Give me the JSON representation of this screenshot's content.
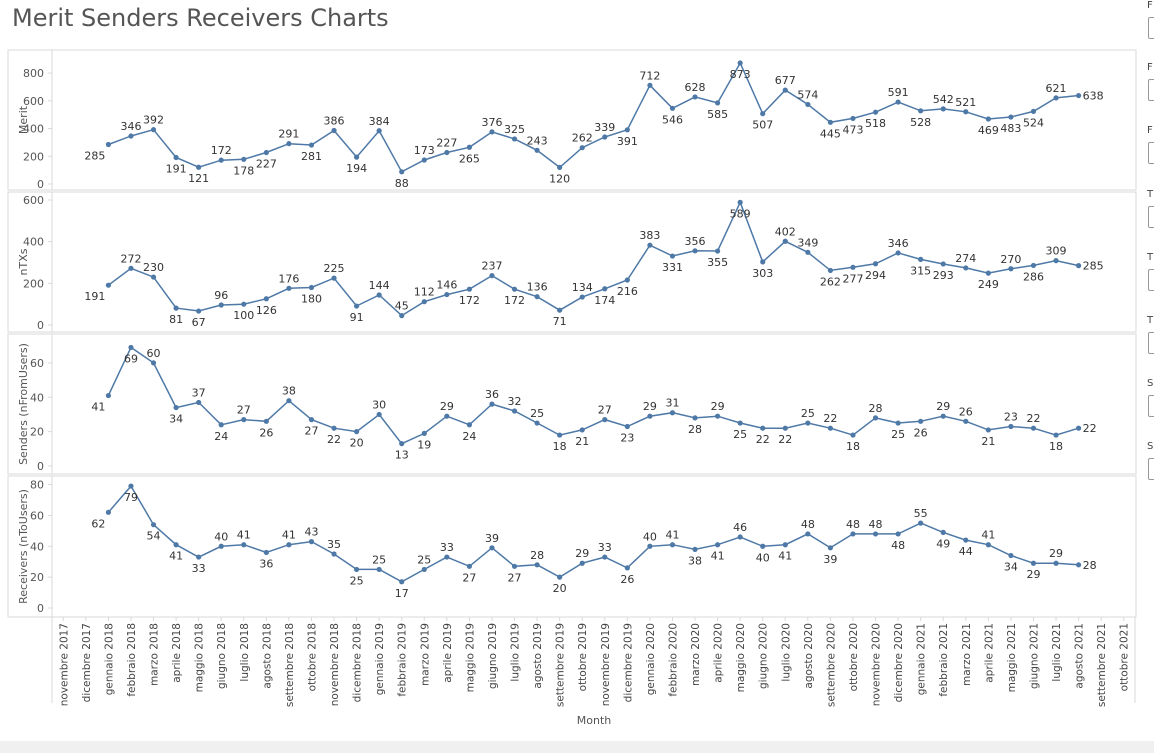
{
  "title": "Merit Senders Receivers Charts",
  "filter_labels": [
    "F",
    "F",
    "F",
    "T",
    "T",
    "T",
    "S",
    "S"
  ],
  "colors": {
    "line": "#4e79a7",
    "grid": "#d9d9d9",
    "text": "#555555"
  },
  "chart_data": {
    "type": "line",
    "title": "Merit Senders Receivers Charts",
    "xlabel": "Month",
    "categories": [
      "novembre 2017",
      "dicembre 2017",
      "gennaio 2018",
      "febbraio 2018",
      "marzo 2018",
      "aprile 2018",
      "maggio 2018",
      "giugno 2018",
      "luglio 2018",
      "agosto 2018",
      "settembre 2018",
      "ottobre 2018",
      "novembre 2018",
      "dicembre 2018",
      "gennaio 2019",
      "febbraio 2019",
      "marzo 2019",
      "aprile 2019",
      "maggio 2019",
      "giugno 2019",
      "luglio 2019",
      "agosto 2019",
      "settembre 2019",
      "ottobre 2019",
      "novembre 2019",
      "dicembre 2019",
      "gennaio 2020",
      "febbraio 2020",
      "marzo 2020",
      "aprile 2020",
      "maggio 2020",
      "giugno 2020",
      "luglio 2020",
      "agosto 2020",
      "settembre 2020",
      "ottobre 2020",
      "novembre 2020",
      "dicembre 2020",
      "gennaio 2021",
      "febbraio 2021",
      "marzo 2021",
      "aprile 2021",
      "maggio 2021",
      "giugno 2021",
      "luglio 2021",
      "agosto 2021",
      "settembre 2021",
      "ottobre 2021"
    ],
    "series": [
      {
        "name": "Merit",
        "ylabel": "Merit",
        "ylim": [
          0,
          880
        ],
        "ticks": [
          0,
          200,
          400,
          600,
          800
        ],
        "values": [
          null,
          null,
          285,
          346,
          392,
          191,
          121,
          172,
          178,
          227,
          291,
          281,
          386,
          194,
          384,
          88,
          173,
          227,
          265,
          376,
          325,
          243,
          120,
          262,
          339,
          391,
          712,
          546,
          628,
          585,
          873,
          507,
          677,
          574,
          445,
          473,
          518,
          591,
          528,
          542,
          521,
          469,
          483,
          524,
          621,
          638,
          null,
          null
        ]
      },
      {
        "name": "nTXs",
        "ylabel": "nTXs",
        "ylim": [
          0,
          600
        ],
        "ticks": [
          0,
          200,
          400,
          600
        ],
        "values": [
          null,
          null,
          191,
          272,
          230,
          81,
          67,
          96,
          100,
          126,
          176,
          180,
          225,
          91,
          144,
          45,
          112,
          146,
          172,
          237,
          172,
          136,
          71,
          134,
          174,
          216,
          383,
          331,
          356,
          355,
          589,
          303,
          402,
          349,
          262,
          277,
          294,
          346,
          315,
          293,
          274,
          249,
          270,
          286,
          309,
          285,
          null,
          null
        ]
      },
      {
        "name": "Senders (nFromUsers)",
        "ylabel": "Senders (nFromUsers)",
        "ylim": [
          0,
          71
        ],
        "ticks": [
          0,
          20,
          40,
          60
        ],
        "values": [
          null,
          null,
          41,
          69,
          60,
          34,
          37,
          24,
          27,
          26,
          38,
          27,
          22,
          20,
          30,
          13,
          19,
          29,
          24,
          36,
          32,
          25,
          18,
          21,
          27,
          23,
          29,
          31,
          28,
          29,
          25,
          22,
          22,
          25,
          22,
          18,
          28,
          25,
          26,
          29,
          26,
          21,
          23,
          22,
          18,
          22,
          null,
          null
        ]
      },
      {
        "name": "Receivers (nToUsers)",
        "ylabel": "Receivers (nToUsers)",
        "ylim": [
          0,
          81
        ],
        "ticks": [
          0,
          20,
          40,
          60,
          80
        ],
        "values": [
          null,
          null,
          62,
          79,
          54,
          41,
          33,
          40,
          41,
          36,
          41,
          43,
          35,
          25,
          25,
          17,
          25,
          33,
          27,
          39,
          27,
          28,
          20,
          29,
          33,
          26,
          40,
          41,
          38,
          41,
          46,
          40,
          41,
          48,
          39,
          48,
          48,
          48,
          55,
          49,
          44,
          41,
          34,
          29,
          29,
          28,
          null,
          null
        ]
      }
    ],
    "grid": false,
    "data_labels": true
  }
}
